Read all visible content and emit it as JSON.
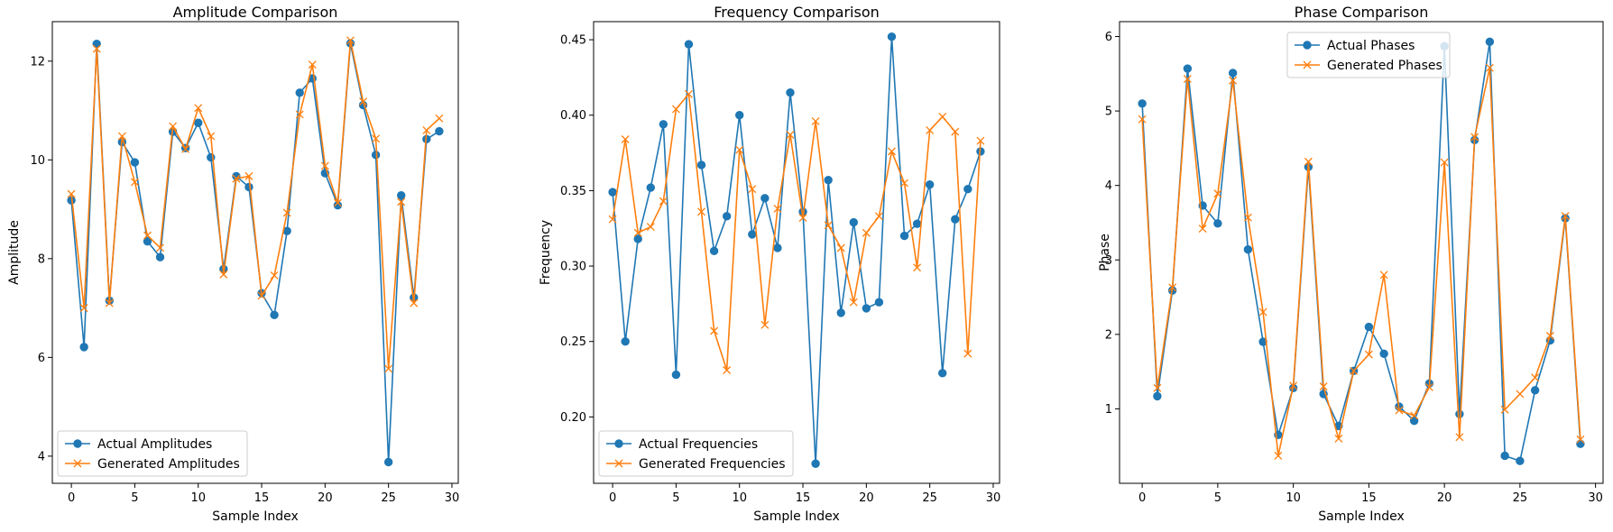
{
  "colors": {
    "actual": "#1f77b4",
    "generated": "#ff7f0e"
  },
  "chart_data": [
    {
      "type": "line",
      "title": "Amplitude Comparison",
      "xlabel": "Sample Index",
      "ylabel": "Amplitude",
      "xlim": [
        -1.5,
        30.5
      ],
      "ylim": [
        3.45,
        12.8
      ],
      "xticks": [
        0,
        5,
        10,
        15,
        20,
        25,
        30
      ],
      "yticks": [
        4,
        6,
        8,
        10,
        12
      ],
      "grid": false,
      "legend": "lower-left",
      "x": [
        0,
        1,
        2,
        3,
        4,
        5,
        6,
        7,
        8,
        9,
        10,
        11,
        12,
        13,
        14,
        15,
        16,
        17,
        18,
        19,
        20,
        21,
        22,
        23,
        24,
        25,
        26,
        27,
        28,
        29
      ],
      "series": [
        {
          "name": "Actual Amplitudes",
          "marker": "o",
          "color": "actual",
          "values": [
            9.18,
            6.21,
            12.35,
            7.15,
            10.36,
            9.95,
            8.35,
            8.03,
            10.57,
            10.24,
            10.75,
            10.05,
            7.79,
            9.67,
            9.45,
            7.3,
            6.86,
            8.56,
            11.36,
            11.65,
            9.73,
            9.08,
            12.36,
            11.11,
            10.1,
            3.88,
            9.28,
            7.21,
            10.42,
            10.58
          ]
        },
        {
          "name": "Generated Amplitudes",
          "marker": "x",
          "color": "generated",
          "values": [
            9.31,
            7.0,
            12.25,
            7.1,
            10.48,
            9.55,
            8.47,
            8.22,
            10.68,
            10.22,
            11.05,
            10.48,
            7.68,
            9.62,
            9.67,
            7.25,
            7.66,
            8.93,
            10.92,
            11.93,
            9.88,
            9.13,
            12.42,
            11.18,
            10.43,
            5.77,
            9.15,
            7.1,
            10.6,
            10.84
          ]
        }
      ]
    },
    {
      "type": "line",
      "title": "Frequency Comparison",
      "xlabel": "Sample Index",
      "ylabel": "Frequency",
      "xlim": [
        -1.5,
        30.5
      ],
      "ylim": [
        0.156,
        0.462
      ],
      "xticks": [
        0,
        5,
        10,
        15,
        20,
        25,
        30
      ],
      "yticks": [
        0.2,
        0.25,
        0.3,
        0.35,
        0.4,
        0.45
      ],
      "yticklabels": [
        "0.20",
        "0.25",
        "0.30",
        "0.35",
        "0.40",
        "0.45"
      ],
      "grid": false,
      "legend": "lower-left",
      "x": [
        0,
        1,
        2,
        3,
        4,
        5,
        6,
        7,
        8,
        9,
        10,
        11,
        12,
        13,
        14,
        15,
        16,
        17,
        18,
        19,
        20,
        21,
        22,
        23,
        24,
        25,
        26,
        27,
        28,
        29
      ],
      "series": [
        {
          "name": "Actual Frequencies",
          "marker": "o",
          "color": "actual",
          "values": [
            0.349,
            0.25,
            0.318,
            0.352,
            0.394,
            0.228,
            0.447,
            0.367,
            0.31,
            0.333,
            0.4,
            0.321,
            0.345,
            0.312,
            0.415,
            0.336,
            0.169,
            0.357,
            0.269,
            0.329,
            0.272,
            0.276,
            0.452,
            0.32,
            0.328,
            0.354,
            0.229,
            0.331,
            0.351,
            0.376
          ]
        },
        {
          "name": "Generated Frequencies",
          "marker": "x",
          "color": "generated",
          "values": [
            0.331,
            0.384,
            0.322,
            0.326,
            0.343,
            0.404,
            0.414,
            0.336,
            0.257,
            0.231,
            0.377,
            0.351,
            0.261,
            0.338,
            0.387,
            0.332,
            0.396,
            0.327,
            0.312,
            0.276,
            0.322,
            0.333,
            0.376,
            0.355,
            0.299,
            0.39,
            0.399,
            0.389,
            0.242,
            0.383
          ]
        }
      ]
    },
    {
      "type": "line",
      "title": "Phase Comparison",
      "xlabel": "Sample Index",
      "ylabel": "Phase",
      "xlim": [
        -1.5,
        30.5
      ],
      "ylim": [
        0.0,
        6.2
      ],
      "xticks": [
        0,
        5,
        10,
        15,
        20,
        25,
        30
      ],
      "yticks": [
        1,
        2,
        3,
        4,
        5,
        6
      ],
      "grid": false,
      "legend": "top-center",
      "x": [
        0,
        1,
        2,
        3,
        4,
        5,
        6,
        7,
        8,
        9,
        10,
        11,
        12,
        13,
        14,
        15,
        16,
        17,
        18,
        19,
        20,
        21,
        22,
        23,
        24,
        25,
        26,
        27,
        28,
        29
      ],
      "series": [
        {
          "name": "Actual Phases",
          "marker": "o",
          "color": "actual",
          "values": [
            5.1,
            1.17,
            2.59,
            5.57,
            3.73,
            3.49,
            5.51,
            3.14,
            1.9,
            0.65,
            1.28,
            4.25,
            1.2,
            0.77,
            1.51,
            2.1,
            1.74,
            1.03,
            0.84,
            1.34,
            5.87,
            0.93,
            4.61,
            5.93,
            0.37,
            0.3,
            1.25,
            1.92,
            3.56,
            0.53
          ]
        },
        {
          "name": "Generated Phases",
          "marker": "x",
          "color": "generated",
          "values": [
            4.89,
            1.28,
            2.63,
            5.43,
            3.42,
            3.89,
            5.41,
            3.57,
            2.3,
            0.37,
            1.31,
            4.32,
            1.3,
            0.6,
            1.51,
            1.73,
            2.8,
            0.98,
            0.91,
            1.29,
            4.31,
            0.62,
            4.65,
            5.58,
            0.99,
            1.2,
            1.42,
            1.98,
            3.59,
            0.59
          ]
        }
      ]
    }
  ]
}
